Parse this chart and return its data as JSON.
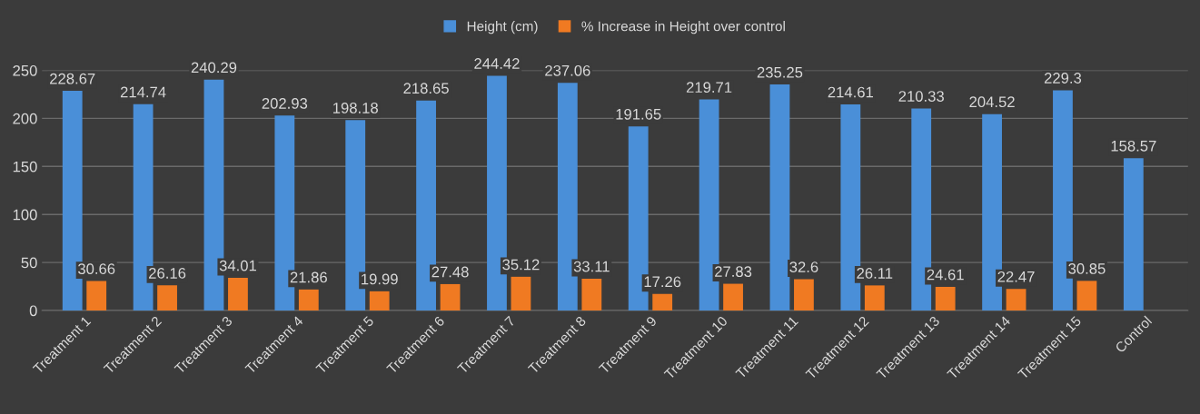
{
  "chart_data": {
    "type": "bar",
    "categories": [
      "Treatment 1",
      "Treatment 2",
      "Treatment 3",
      "Treatment 4",
      "Treatment 5",
      "Treatment 6",
      "Treatment 7",
      "Treatment 8",
      "Treatment 9",
      "Treatment 10",
      "Treatment 11",
      "Treatment 12",
      "Treatment 13",
      "Treatment 14",
      "Treatment 15",
      "Control"
    ],
    "series": [
      {
        "name": "Height (cm)",
        "color": "#4a8fd8",
        "values": [
          228.67,
          214.74,
          240.29,
          202.93,
          198.18,
          218.65,
          244.42,
          237.06,
          191.65,
          219.71,
          235.25,
          214.61,
          210.33,
          204.52,
          229.3,
          158.57
        ]
      },
      {
        "name": "% Increase in Height over control",
        "color": "#f07a22",
        "values": [
          30.66,
          26.16,
          34.01,
          21.86,
          19.99,
          27.48,
          35.12,
          33.11,
          17.26,
          27.83,
          32.6,
          26.11,
          24.61,
          22.47,
          30.85,
          null
        ]
      }
    ],
    "ylim": [
      0,
      250
    ],
    "yticks": [
      0,
      50,
      100,
      150,
      200,
      250
    ],
    "grid": "y",
    "legend": "top",
    "data_labels": true
  }
}
